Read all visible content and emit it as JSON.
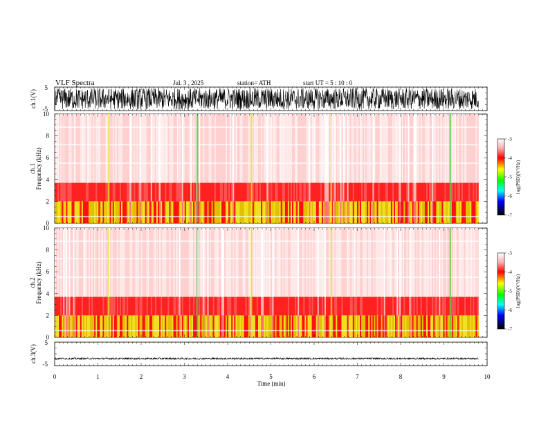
{
  "header": {
    "title": "VLF  Spectra",
    "date": "Jul.  3  , 2025",
    "station": "station= ATH",
    "start": "start  UT  =    5  : 10 : 0"
  },
  "chart_data": [
    {
      "type": "line",
      "name": "ch.1 waveform",
      "ylabel": "ch.1(V)",
      "ylim": [
        -5,
        5
      ],
      "yticks": [
        "5",
        "-5"
      ],
      "amplitude_range": [
        -5,
        5
      ]
    },
    {
      "type": "heatmap",
      "name": "ch.1 spectrogram",
      "ylabel": "ch.1\nFrequency  (kHz)",
      "ylabel_lines": [
        "ch.1",
        "Frequency  (kHz)"
      ],
      "ylim": [
        0,
        10
      ],
      "yticks": [
        "0",
        "2",
        "4",
        "6",
        "8",
        "10"
      ],
      "xlim": [
        0,
        9.8
      ],
      "bands_kHz": [
        {
          "range": [
            0,
            2
          ],
          "level": "high"
        },
        {
          "range": [
            2,
            3.7
          ],
          "level": "mid"
        },
        {
          "range": [
            3.7,
            10
          ],
          "level": "low"
        }
      ],
      "colorbar": {
        "label": "log(PSD)(V²/Hz)",
        "range": [
          -7,
          -3
        ],
        "ticks": [
          "-3",
          "-4",
          "-5",
          "-6",
          "-7"
        ]
      }
    },
    {
      "type": "heatmap",
      "name": "ch.2 spectrogram",
      "ylabel": "ch.2\nFrequency  (kHz)",
      "ylabel_lines": [
        "ch.2",
        "Frequency  (kHz)"
      ],
      "ylim": [
        0,
        10
      ],
      "yticks": [
        "0",
        "2",
        "4",
        "6",
        "8",
        "10"
      ],
      "xlim": [
        0,
        9.8
      ],
      "bands_kHz": [
        {
          "range": [
            0,
            2
          ],
          "level": "high"
        },
        {
          "range": [
            2,
            3.7
          ],
          "level": "mid"
        },
        {
          "range": [
            3.7,
            10
          ],
          "level": "low"
        }
      ],
      "colorbar": {
        "label": "log(PSD)(V²/Hz)",
        "range": [
          -7,
          -3
        ],
        "ticks": [
          "-3",
          "-4",
          "-5",
          "-6",
          "-7"
        ]
      }
    },
    {
      "type": "line",
      "name": "ch.3 waveform",
      "ylabel": "ch.3(V)",
      "ylim": [
        -5,
        5
      ],
      "yticks": [
        "5",
        "-5"
      ],
      "baseline": -2
    }
  ],
  "x_axis": {
    "label": "Time  (min)",
    "xlim": [
      0,
      10
    ],
    "ticks": [
      "0",
      "1",
      "2",
      "3",
      "4",
      "5",
      "6",
      "7",
      "8",
      "9",
      "10"
    ]
  },
  "colors": {
    "colormap": [
      "#000000",
      "#0000ff",
      "#00ffff",
      "#00ff00",
      "#ffff00",
      "#ff0000",
      "#ffffff"
    ]
  }
}
